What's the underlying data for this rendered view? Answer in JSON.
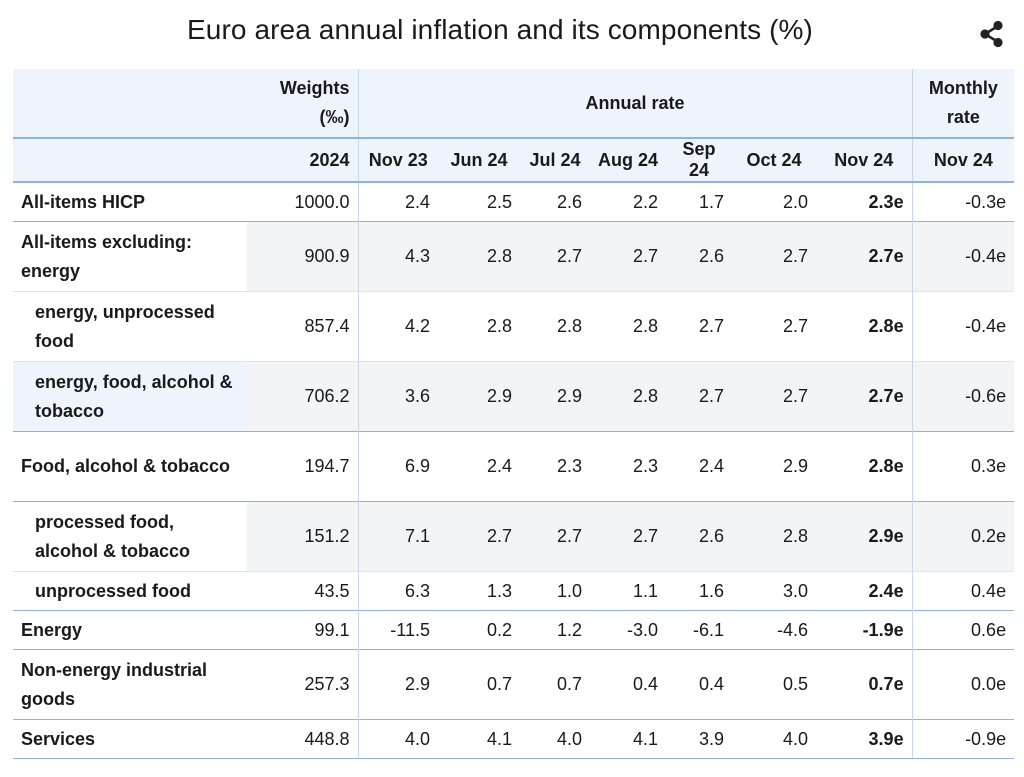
{
  "title": "Euro area annual inflation and its components (%)",
  "share_icon": "share-icon",
  "header": {
    "weights": "Weights",
    "weights_unit": "(‰)",
    "annual_rate": "Annual rate",
    "monthly": "Monthly",
    "monthly_rate": "rate"
  },
  "subheader": [
    "2024",
    "Nov 23",
    "Jun 24",
    "Jul 24",
    "Aug 24",
    "Sep 24",
    "Oct 24",
    "Nov 24",
    "Nov 24"
  ],
  "rows": [
    {
      "label": "All-items HICP",
      "weight": "1000.0",
      "values": [
        "2.4",
        "2.5",
        "2.6",
        "2.2",
        "1.7",
        "2.0",
        "2.3e",
        "-0.3e"
      ]
    },
    {
      "label": "All-items excluding: energy",
      "weight": "900.9",
      "values": [
        "4.3",
        "2.8",
        "2.7",
        "2.7",
        "2.6",
        "2.7",
        "2.7e",
        "-0.4e"
      ]
    },
    {
      "label": "energy, unprocessed food",
      "weight": "857.4",
      "values": [
        "4.2",
        "2.8",
        "2.8",
        "2.8",
        "2.7",
        "2.7",
        "2.8e",
        "-0.4e"
      ]
    },
    {
      "label": "energy, food, alcohol & tobacco",
      "weight": "706.2",
      "values": [
        "3.6",
        "2.9",
        "2.9",
        "2.8",
        "2.7",
        "2.7",
        "2.7e",
        "-0.6e"
      ]
    },
    {
      "label": "Food, alcohol & tobacco",
      "weight": "194.7",
      "values": [
        "6.9",
        "2.4",
        "2.3",
        "2.3",
        "2.4",
        "2.9",
        "2.8e",
        "0.3e"
      ]
    },
    {
      "label": "processed food, alcohol & tobacco",
      "weight": "151.2",
      "values": [
        "7.1",
        "2.7",
        "2.7",
        "2.7",
        "2.6",
        "2.8",
        "2.9e",
        "0.2e"
      ]
    },
    {
      "label": "unprocessed food",
      "weight": "43.5",
      "values": [
        "6.3",
        "1.3",
        "1.0",
        "1.1",
        "1.6",
        "3.0",
        "2.4e",
        "0.4e"
      ]
    },
    {
      "label": "Energy",
      "weight": "99.1",
      "values": [
        "-11.5",
        "0.2",
        "1.2",
        "-3.0",
        "-6.1",
        "-4.6",
        "-1.9e",
        "0.6e"
      ]
    },
    {
      "label": "Non-energy industrial goods",
      "weight": "257.3",
      "values": [
        "2.9",
        "0.7",
        "0.7",
        "0.4",
        "0.4",
        "0.5",
        "0.7e",
        "0.0e"
      ]
    },
    {
      "label": "Services",
      "weight": "448.8",
      "values": [
        "4.0",
        "4.1",
        "4.0",
        "4.1",
        "3.9",
        "4.0",
        "3.9e",
        "-0.9e"
      ]
    }
  ],
  "colors": {
    "header_bg": "#eef4fb",
    "rule": "#8fb3dd",
    "alt_row": "#f3f4f6"
  }
}
